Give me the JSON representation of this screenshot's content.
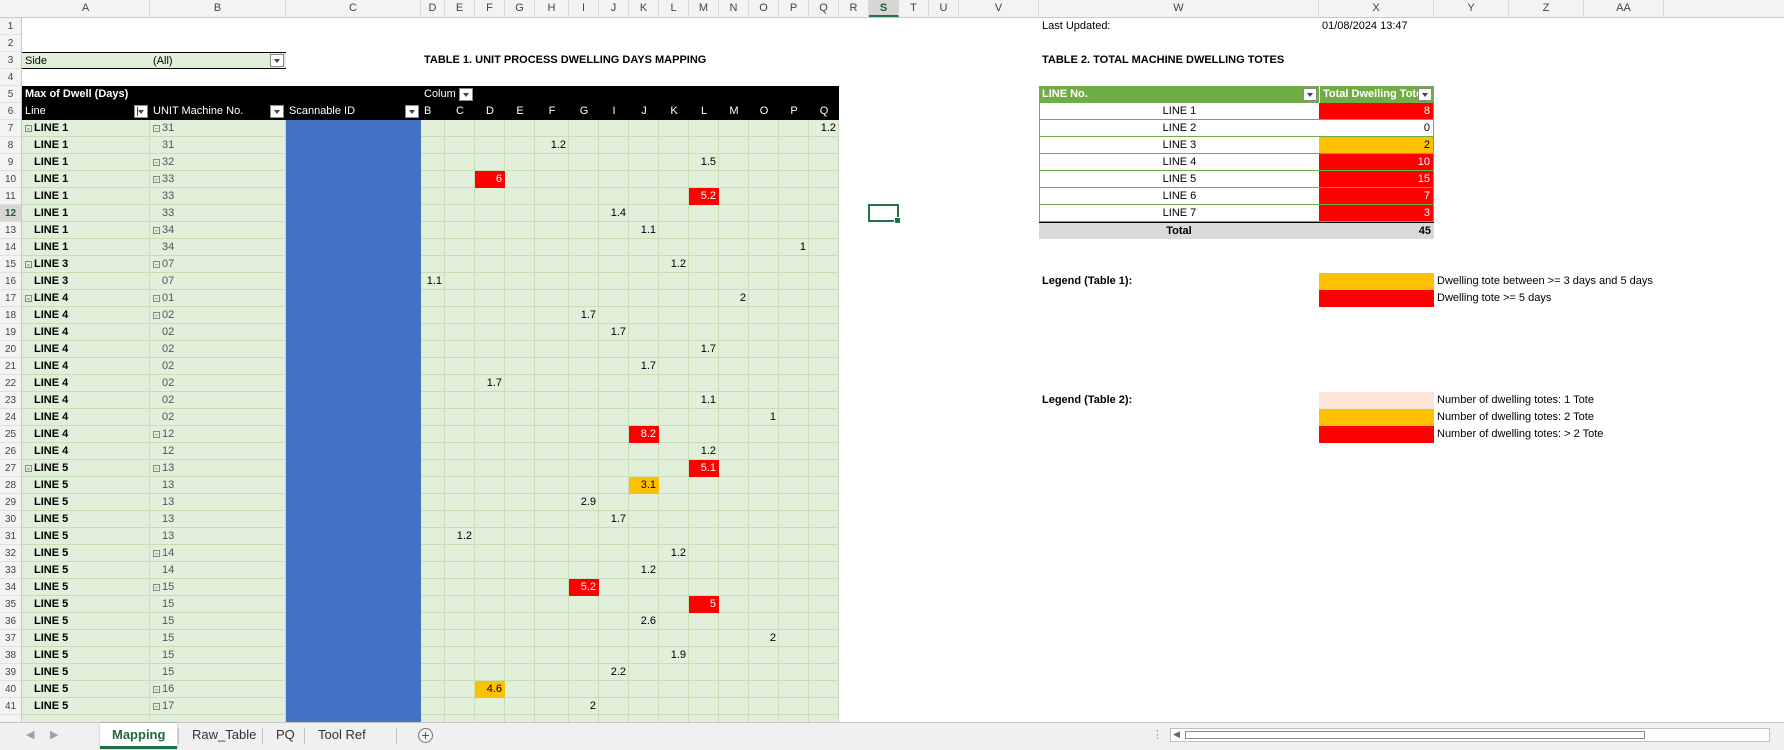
{
  "colors": {
    "green_light": "#e2efda",
    "green_hdr": "#70ad47",
    "blue": "#4472c4",
    "red": "#ff0000",
    "amber": "#ffc000",
    "peach": "#fce4d6",
    "black": "#000000",
    "selected": "#217346"
  },
  "columns": [
    "A",
    "B",
    "C",
    "D",
    "E",
    "F",
    "G",
    "H",
    "I",
    "J",
    "K",
    "L",
    "M",
    "N",
    "O",
    "P",
    "Q",
    "R",
    "S",
    "T",
    "U",
    "V",
    "W",
    "X",
    "Y",
    "Z",
    "AA"
  ],
  "selected_column": "S",
  "selected_row": "12",
  "filter": {
    "label": "Side",
    "value": "(All)"
  },
  "table1": {
    "title": "TABLE 1. UNIT PROCESS DWELLING DAYS MAPPING",
    "measure": "Max of Dwell (Days)",
    "col_label": "Colum",
    "row_headers": [
      "Line",
      "UNIT Machine No.",
      "Scannable ID"
    ],
    "sub_columns": [
      "B",
      "C",
      "D",
      "E",
      "F",
      "G",
      "I",
      "J",
      "K",
      "L",
      "M",
      "O",
      "P",
      "Q"
    ],
    "rows": [
      {
        "line": "LINE 1",
        "line_group": true,
        "unit": "31",
        "unit_group": true,
        "val": "1.2",
        "col": "Q",
        "fill": ""
      },
      {
        "line": "LINE 1",
        "unit": "31",
        "val": "1.2",
        "col": "F",
        "fill": ""
      },
      {
        "line": "LINE 1",
        "unit": "32",
        "unit_group": true,
        "val": "1.5",
        "col": "L",
        "fill": ""
      },
      {
        "line": "LINE 1",
        "unit": "33",
        "unit_group": true,
        "val": "6",
        "col": "D",
        "fill": "red"
      },
      {
        "line": "LINE 1",
        "unit": "33",
        "val": "5.2",
        "col": "L",
        "fill": "red"
      },
      {
        "line": "LINE 1",
        "unit": "33",
        "val": "1.4",
        "col": "I",
        "fill": ""
      },
      {
        "line": "LINE 1",
        "unit": "34",
        "unit_group": true,
        "val": "1.1",
        "col": "J",
        "fill": ""
      },
      {
        "line": "LINE 1",
        "unit": "34",
        "val": "1",
        "col": "P",
        "fill": ""
      },
      {
        "line": "LINE 3",
        "line_group": true,
        "unit": "07",
        "unit_group": true,
        "val": "1.2",
        "col": "K",
        "fill": ""
      },
      {
        "line": "LINE 3",
        "unit": "07",
        "val": "1.1",
        "col": "B",
        "fill": ""
      },
      {
        "line": "LINE 4",
        "line_group": true,
        "unit": "01",
        "unit_group": true,
        "val": "2",
        "col": "M",
        "fill": ""
      },
      {
        "line": "LINE 4",
        "unit": "02",
        "unit_group": true,
        "val": "1.7",
        "col": "G",
        "fill": ""
      },
      {
        "line": "LINE 4",
        "unit": "02",
        "val": "1.7",
        "col": "I",
        "fill": ""
      },
      {
        "line": "LINE 4",
        "unit": "02",
        "val": "1.7",
        "col": "L",
        "fill": ""
      },
      {
        "line": "LINE 4",
        "unit": "02",
        "val": "1.7",
        "col": "J",
        "fill": ""
      },
      {
        "line": "LINE 4",
        "unit": "02",
        "val": "1.7",
        "col": "D",
        "fill": ""
      },
      {
        "line": "LINE 4",
        "unit": "02",
        "val": "1.1",
        "col": "L",
        "fill": ""
      },
      {
        "line": "LINE 4",
        "unit": "02",
        "val": "1",
        "col": "O",
        "fill": ""
      },
      {
        "line": "LINE 4",
        "unit": "12",
        "unit_group": true,
        "val": "8.2",
        "col": "J",
        "fill": "red"
      },
      {
        "line": "LINE 4",
        "unit": "12",
        "val": "1.2",
        "col": "L",
        "fill": ""
      },
      {
        "line": "LINE 5",
        "line_group": true,
        "unit": "13",
        "unit_group": true,
        "val": "5.1",
        "col": "L",
        "fill": "red"
      },
      {
        "line": "LINE 5",
        "unit": "13",
        "val": "3.1",
        "col": "J",
        "fill": "amber"
      },
      {
        "line": "LINE 5",
        "unit": "13",
        "val": "2.9",
        "col": "G",
        "fill": ""
      },
      {
        "line": "LINE 5",
        "unit": "13",
        "val": "1.7",
        "col": "I",
        "fill": ""
      },
      {
        "line": "LINE 5",
        "unit": "13",
        "val": "1.2",
        "col": "C",
        "fill": ""
      },
      {
        "line": "LINE 5",
        "unit": "14",
        "unit_group": true,
        "val": "1.2",
        "col": "K",
        "fill": ""
      },
      {
        "line": "LINE 5",
        "unit": "14",
        "val": "1.2",
        "col": "J",
        "fill": ""
      },
      {
        "line": "LINE 5",
        "unit": "15",
        "unit_group": true,
        "val": "5.2",
        "col": "G",
        "fill": "red"
      },
      {
        "line": "LINE 5",
        "unit": "15",
        "val": "5",
        "col": "L",
        "fill": "red"
      },
      {
        "line": "LINE 5",
        "unit": "15",
        "val": "2.6",
        "col": "J",
        "fill": ""
      },
      {
        "line": "LINE 5",
        "unit": "15",
        "val": "2",
        "col": "O",
        "fill": ""
      },
      {
        "line": "LINE 5",
        "unit": "15",
        "val": "1.9",
        "col": "K",
        "fill": ""
      },
      {
        "line": "LINE 5",
        "unit": "15",
        "val": "2.2",
        "col": "I",
        "fill": ""
      },
      {
        "line": "LINE 5",
        "unit": "16",
        "unit_group": true,
        "val": "4.6",
        "col": "D",
        "fill": "amber"
      },
      {
        "line": "LINE 5",
        "unit": "17",
        "unit_group": true,
        "val": "2",
        "col": "G",
        "fill": ""
      }
    ]
  },
  "table2": {
    "last_updated_label": "Last Updated:",
    "last_updated_value": "01/08/2024 13:47",
    "title": "TABLE 2. TOTAL MACHINE DWELLING TOTES",
    "headers": [
      "LINE No.",
      "Total Dwelling Tote"
    ],
    "rows": [
      {
        "line": "LINE 1",
        "total": "8",
        "fill": "red"
      },
      {
        "line": "LINE 2",
        "total": "0",
        "fill": ""
      },
      {
        "line": "LINE 3",
        "total": "2",
        "fill": "amber"
      },
      {
        "line": "LINE 4",
        "total": "10",
        "fill": "red"
      },
      {
        "line": "LINE 5",
        "total": "15",
        "fill": "red"
      },
      {
        "line": "LINE 6",
        "total": "7",
        "fill": "red"
      },
      {
        "line": "LINE 7",
        "total": "3",
        "fill": "red"
      }
    ],
    "total_label": "Total",
    "total_value": "45"
  },
  "legend1": {
    "title": "Legend (Table 1):",
    "items": [
      {
        "fill": "amber",
        "text": "Dwelling tote between  >= 3 days and 5 days"
      },
      {
        "fill": "red",
        "text": "Dwelling tote >= 5 days"
      }
    ]
  },
  "legend2": {
    "title": "Legend (Table 2):",
    "items": [
      {
        "fill": "peach",
        "text": "Number of dwelling totes: 1 Tote"
      },
      {
        "fill": "amber",
        "text": "Number of dwelling totes: 2 Tote"
      },
      {
        "fill": "red",
        "text": "Number of dwelling totes: > 2 Tote"
      }
    ]
  },
  "sheet_tabs": [
    "Mapping",
    "Raw_Table",
    "PQ",
    "Tool Ref"
  ],
  "active_tab": "Mapping"
}
